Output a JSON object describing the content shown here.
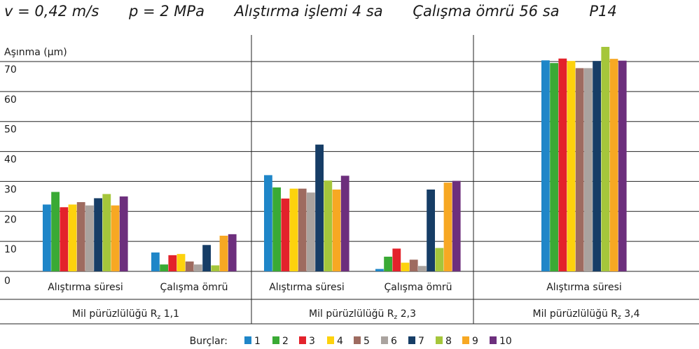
{
  "title_parts": [
    "v = 0,42 m/s",
    "p = 2 MPa",
    "Alıştırma işlemi 4 sa",
    "Çalışma ömrü 56 sa",
    "P14"
  ],
  "chart_data": {
    "type": "bar",
    "ylabel": "Aşınma (µm)",
    "ylim": [
      0,
      70
    ],
    "yticks": [
      0,
      10,
      20,
      30,
      40,
      50,
      60,
      70
    ],
    "grid": true,
    "legend_title": "Burçlar:",
    "legend_position": "bottom",
    "series_names": [
      "1",
      "2",
      "3",
      "4",
      "5",
      "6",
      "7",
      "8",
      "9",
      "10"
    ],
    "series_colors": [
      "#1f86c8",
      "#3aaa35",
      "#e3222b",
      "#fdd20d",
      "#9e6b60",
      "#aaa39f",
      "#163d66",
      "#a5c63b",
      "#f7a823",
      "#6d2f7d"
    ],
    "panels": [
      {
        "label_main": "Mil pürüzlülüğü R",
        "label_sub": "z",
        "label_tail": " 1,1",
        "groups": [
          {
            "label": "Alıştırma süresi",
            "values": [
              22.3,
              26.5,
              21.4,
              22.3,
              23.1,
              22.0,
              24.4,
              25.8,
              22.0,
              25.0
            ]
          },
          {
            "label": "Çalışma ömrü",
            "values": [
              6.3,
              2.3,
              5.4,
              5.8,
              3.3,
              2.3,
              8.8,
              2.0,
              11.9,
              12.4
            ]
          }
        ]
      },
      {
        "label_main": "Mil pürüzlülüğü R",
        "label_sub": "z",
        "label_tail": " 2,3",
        "groups": [
          {
            "label": "Alıştırma süresi",
            "values": [
              32.1,
              28.0,
              24.3,
              27.6,
              27.6,
              26.3,
              42.3,
              30.3,
              27.3,
              31.9
            ]
          },
          {
            "label": "Çalışma ömrü",
            "values": [
              0.8,
              4.9,
              7.6,
              2.9,
              3.9,
              1.8,
              27.3,
              7.8,
              29.6,
              30.2
            ]
          }
        ]
      },
      {
        "label_main": "Mil pürüzlülüğü R",
        "label_sub": "z",
        "label_tail": " 3,4",
        "groups": [
          {
            "label": "Alıştırma süresi",
            "values": [
              70.4,
              69.5,
              71.0,
              70.2,
              67.8,
              67.8,
              70.2,
              74.9,
              70.9,
              70.3
            ]
          }
        ]
      }
    ]
  }
}
